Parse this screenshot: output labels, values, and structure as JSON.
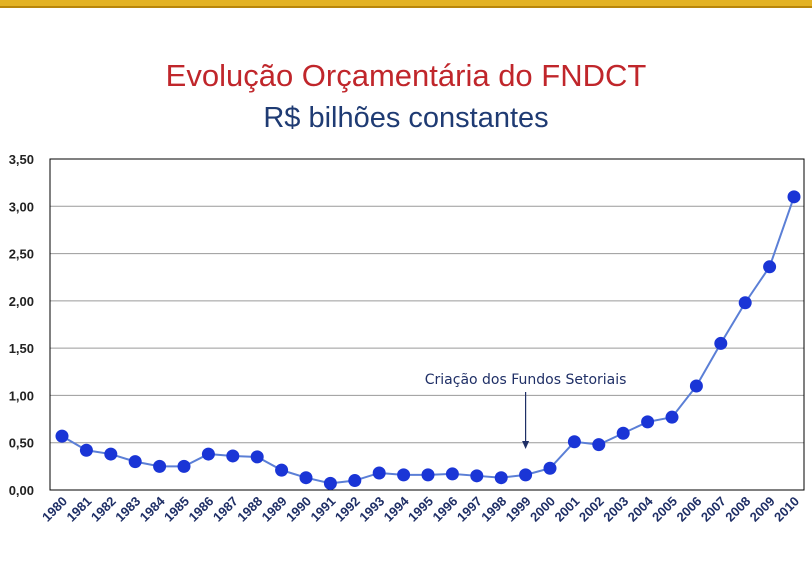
{
  "header": {
    "title": "Evolução Orçamentária do FNDCT",
    "subtitle": "R$ bilhões constantes"
  },
  "colors": {
    "top_bar": "#e3b224",
    "title": "#c0262b",
    "subtitle": "#1f3b73",
    "series_line": "#5b7fd6",
    "series_marker": "#1a35d6",
    "grid": "#9a9a9a"
  },
  "chart_data": {
    "type": "line",
    "title": "Evolução Orçamentária do FNDCT",
    "subtitle": "R$ bilhões constantes",
    "xlabel": "",
    "ylabel": "",
    "ylim": [
      0,
      3.5
    ],
    "yticks": [
      "0,00",
      "0,50",
      "1,00",
      "1,50",
      "2,00",
      "2,50",
      "3,00",
      "3,50"
    ],
    "grid": true,
    "legend": "none",
    "categories": [
      "1980",
      "1981",
      "1982",
      "1983",
      "1984",
      "1985",
      "1986",
      "1987",
      "1988",
      "1989",
      "1990",
      "1991",
      "1992",
      "1993",
      "1994",
      "1995",
      "1996",
      "1997",
      "1998",
      "1999",
      "2000",
      "2001",
      "2002",
      "2003",
      "2004",
      "2005",
      "2006",
      "2007",
      "2008",
      "2009",
      "2010"
    ],
    "series": [
      {
        "values": [
          0.57,
          0.42,
          0.38,
          0.3,
          0.25,
          0.25,
          0.38,
          0.36,
          0.35,
          0.21,
          0.13,
          0.07,
          0.1,
          0.18,
          0.16,
          0.16,
          0.17,
          0.15,
          0.13,
          0.16,
          0.23,
          0.51,
          0.48,
          0.6,
          0.72,
          0.77,
          1.1,
          1.55,
          1.98,
          2.36,
          3.1
        ]
      }
    ],
    "annotations": [
      {
        "text": "Criação dos Fundos Setoriais",
        "points_to": "1999"
      }
    ]
  }
}
